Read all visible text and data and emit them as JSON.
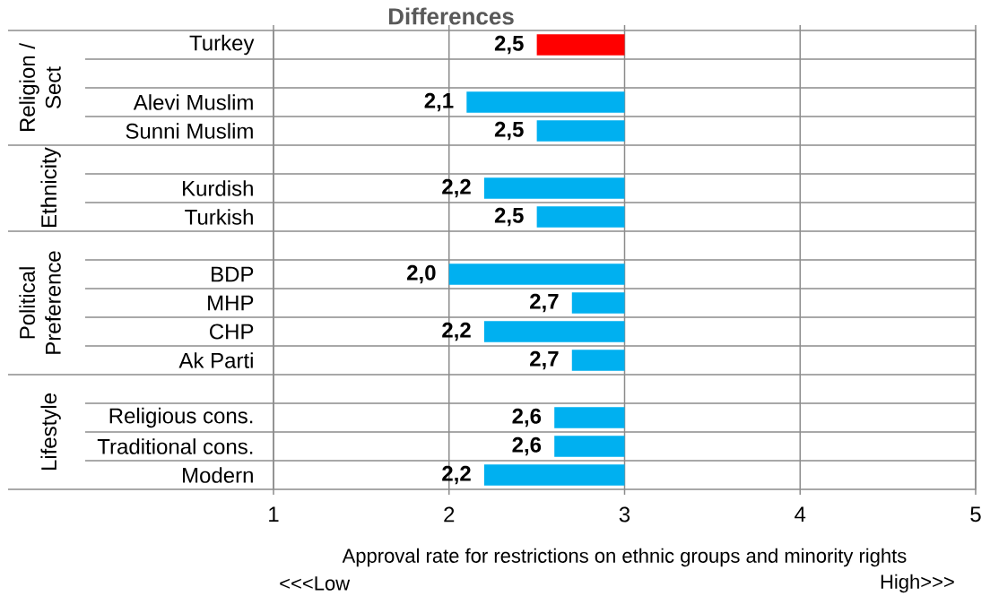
{
  "chart_data": {
    "type": "bar",
    "orientation": "horizontal",
    "title": "Differences",
    "xlabel": "Approval rate for restrictions on ethnic groups and minority rights",
    "categories": [
      "Turkey",
      null,
      "Alevi Muslim",
      "Sunni Muslim",
      null,
      "Kurdish",
      "Turkish",
      null,
      "BDP",
      "MHP",
      "CHP",
      "Ak Parti",
      null,
      "Religious cons.",
      "Traditional cons.",
      "Modern"
    ],
    "base": [
      3,
      null,
      3,
      3,
      null,
      3,
      3,
      null,
      3,
      3,
      3,
      3,
      null,
      3,
      3,
      3
    ],
    "values": [
      -0.5,
      null,
      -0.9,
      -0.5,
      null,
      -0.8,
      -0.5,
      null,
      -1.0,
      -0.3,
      -0.8,
      -0.3,
      null,
      -0.4,
      -0.4,
      -0.8
    ],
    "colors": [
      "#ff0000",
      null,
      "#00b0f0",
      "#00b0f0",
      null,
      "#00b0f0",
      "#00b0f0",
      null,
      "#00b0f0",
      "#00b0f0",
      "#00b0f0",
      "#00b0f0",
      null,
      "#00b0f0",
      "#00b0f0",
      "#00b0f0"
    ],
    "value_labels": [
      "2,5",
      null,
      "2,1",
      "2,5",
      null,
      "2,2",
      "2,5",
      null,
      "2,0",
      "2,7",
      "2,2",
      "2,7",
      null,
      "2,6",
      "2,6",
      "2,2"
    ],
    "xlim": [
      1,
      5
    ],
    "xticks": [
      1,
      2,
      3,
      4,
      5
    ],
    "grid": true,
    "annotations": [
      "Religion / Sect",
      "Ethnicity",
      "Political Preference",
      "Lifestyle",
      "<<<Low",
      "High>>>"
    ]
  }
}
